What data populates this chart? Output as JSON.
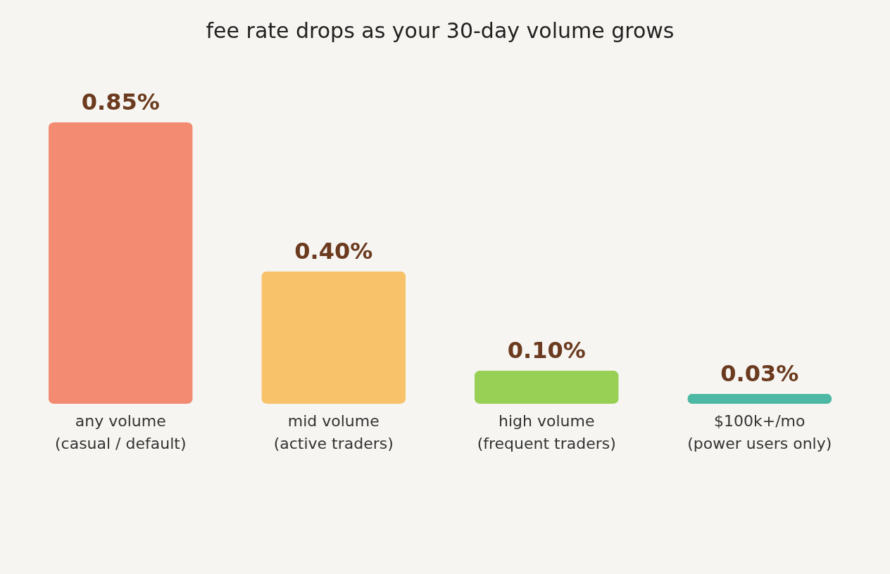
{
  "chart_data": {
    "type": "bar",
    "title": "fee rate drops as your 30-day volume grows",
    "categories": [
      "any volume\n(casual / default)",
      "mid volume\n(active traders)",
      "high volume\n(frequent traders)",
      "$100k+/mo\n(power users only)"
    ],
    "values": [
      0.85,
      0.4,
      0.1,
      0.03
    ],
    "value_labels": [
      "0.85%",
      "0.40%",
      "0.10%",
      "0.03%"
    ],
    "colors": [
      "#f38a72",
      "#f8c26a",
      "#97d055",
      "#4db8a4"
    ],
    "grid": false,
    "legend": false
  }
}
